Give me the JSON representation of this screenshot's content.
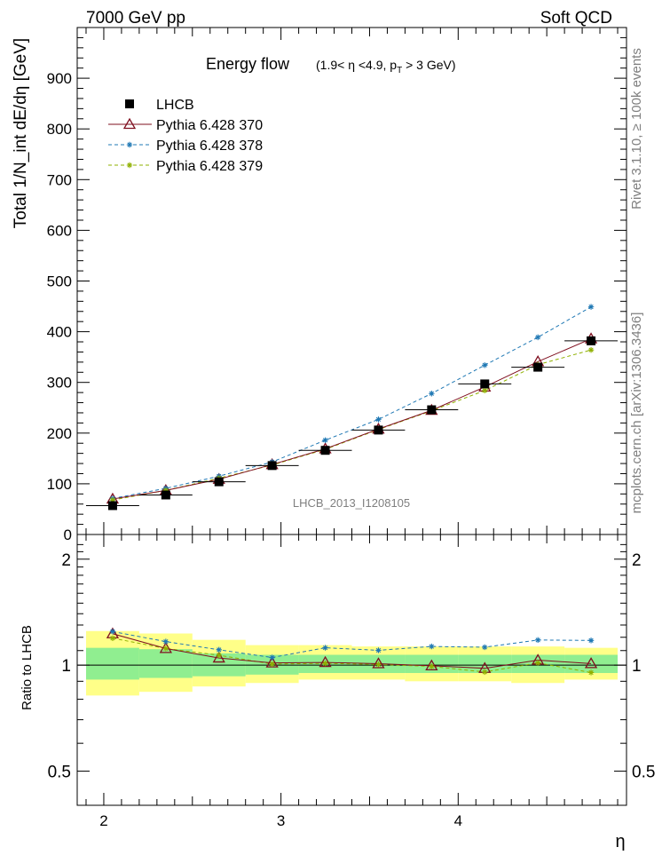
{
  "header": {
    "left": "7000 GeV pp",
    "right": "Soft QCD"
  },
  "side_labels": {
    "top": "Rivet 3.1.10, ≥ 100k events",
    "bottom": "mcplots.cern.ch [arXiv:1306.3436]"
  },
  "chart_data": {
    "type": "line",
    "title": "Energy flow",
    "title_detail": "(1.9< η <4.9, p_T > 3 GeV)",
    "watermark": "LHCB_2013_I1208105",
    "xlabel": "η",
    "ylabel_main": "Total 1/N_int dE/dη [GeV]",
    "ylabel_ratio": "Ratio to LHCB",
    "xlim": [
      1.85,
      4.95
    ],
    "ylim_main": [
      0,
      1000
    ],
    "ylim_ratio": [
      0.4,
      2.35
    ],
    "ratio_log_scale": true,
    "x_ticks": [
      "2",
      "3",
      "4"
    ],
    "y_ticks_main": [
      "0",
      "100",
      "200",
      "300",
      "400",
      "500",
      "600",
      "700",
      "800",
      "900"
    ],
    "y_ticks_ratio": [
      "0.5",
      "1",
      "2"
    ],
    "legend_position": "top-left",
    "x_edges": [
      1.9,
      2.2,
      2.5,
      2.8,
      3.1,
      3.4,
      3.7,
      4.0,
      4.3,
      4.6,
      4.9
    ],
    "x": [
      2.05,
      2.35,
      2.65,
      2.95,
      3.25,
      3.55,
      3.85,
      4.15,
      4.45,
      4.75
    ],
    "data": {
      "name": "LHCB",
      "color": "#000000",
      "values": [
        57,
        78,
        104,
        136,
        166,
        206,
        246,
        297,
        330,
        382
      ]
    },
    "series": [
      {
        "name": "Pythia 6.428 370",
        "color": "#7f0f1f",
        "marker": "triangle",
        "dash": "solid",
        "values": [
          70,
          87,
          109,
          138,
          169,
          208,
          245,
          291,
          341,
          386
        ]
      },
      {
        "name": "Pythia 6.428 378",
        "color": "#1f78b4",
        "marker": "star",
        "dash": "dashed",
        "values": [
          71,
          91,
          115,
          143,
          186,
          227,
          278,
          334,
          389,
          449
        ]
      },
      {
        "name": "Pythia 6.428 379",
        "color": "#8fb000",
        "marker": "star",
        "dash": "dashed",
        "values": [
          68,
          87,
          111,
          137,
          168,
          207,
          244,
          284,
          335,
          364
        ]
      }
    ],
    "uncertainty_bands": {
      "inner_color": "#90ee90",
      "outer_color": "#ffff88",
      "inner_lo": [
        0.91,
        0.92,
        0.93,
        0.94,
        0.95,
        0.95,
        0.95,
        0.95,
        0.95,
        0.95
      ],
      "inner_hi": [
        1.12,
        1.11,
        1.08,
        1.07,
        1.07,
        1.07,
        1.07,
        1.07,
        1.07,
        1.07
      ],
      "outer_lo": [
        0.82,
        0.84,
        0.87,
        0.89,
        0.91,
        0.91,
        0.9,
        0.9,
        0.89,
        0.91
      ],
      "outer_hi": [
        1.25,
        1.23,
        1.18,
        1.14,
        1.14,
        1.13,
        1.13,
        1.13,
        1.13,
        1.12
      ]
    }
  }
}
